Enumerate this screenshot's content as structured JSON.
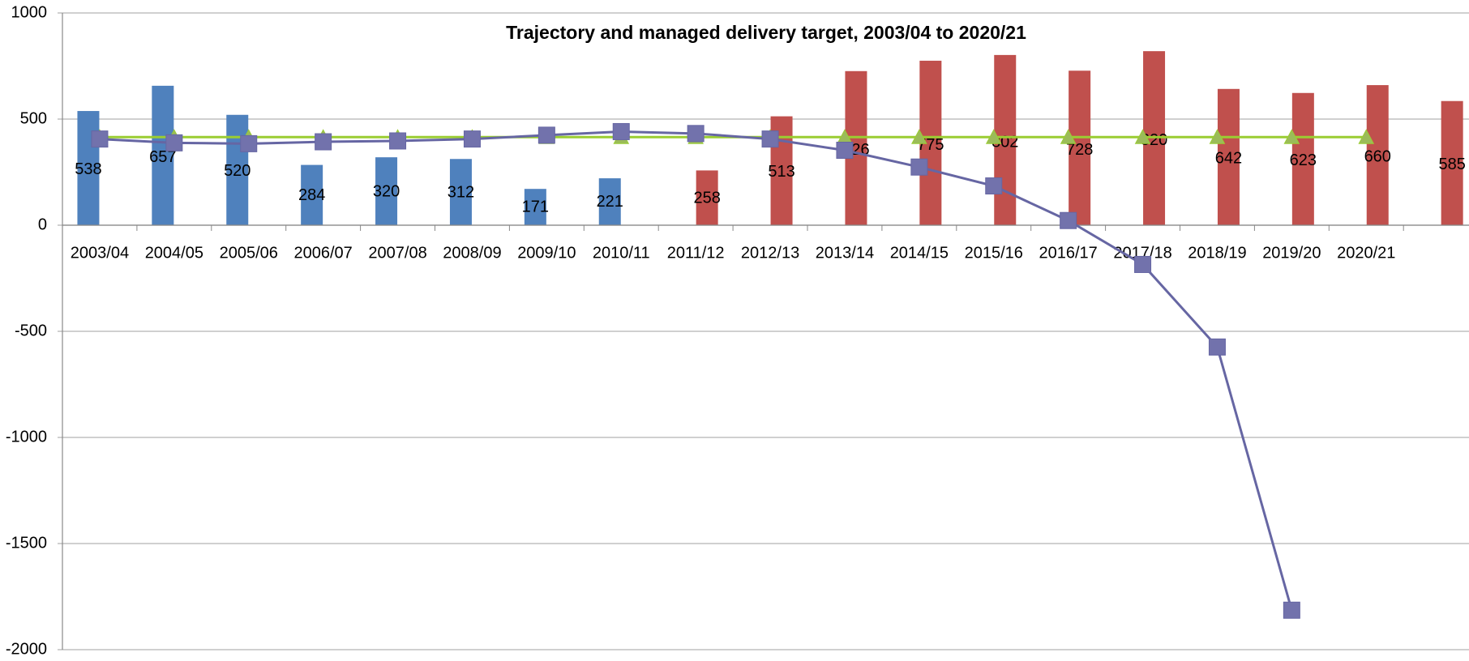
{
  "chart_data": {
    "type": "bar",
    "title": "Trajectory and managed delivery target, 2003/04 to 2020/21",
    "categories": [
      "2003/04",
      "2004/05",
      "2005/06",
      "2006/07",
      "2007/08",
      "2008/09",
      "2009/10",
      "2010/11",
      "2011/12",
      "2012/13",
      "2013/14",
      "2014/15",
      "2015/16",
      "2016/17",
      "2017/18",
      "2018/19",
      "2019/20",
      "2020/21",
      null
    ],
    "series": [
      {
        "type": "bar",
        "color": "#4f81bd",
        "values": [
          538,
          657,
          520,
          284,
          320,
          312,
          171,
          221,
          null,
          null,
          null,
          null,
          null,
          null,
          null,
          null,
          null,
          null,
          null
        ]
      },
      {
        "type": "bar",
        "color": "#c0504d",
        "values": [
          null,
          null,
          null,
          null,
          null,
          null,
          null,
          null,
          258,
          513,
          726,
          775,
          802,
          728,
          820,
          642,
          623,
          660,
          585
        ]
      },
      {
        "type": "line",
        "color": "#9acd32",
        "marker": "triangle",
        "values": [
          415,
          415,
          415,
          415,
          415,
          415,
          415,
          415,
          415,
          415,
          415,
          415,
          415,
          415,
          415,
          415,
          415,
          415,
          null
        ]
      },
      {
        "type": "line",
        "color": "#6666a3",
        "marker": "square",
        "values": [
          406,
          388,
          384,
          393,
          397,
          406,
          424,
          441,
          432,
          406,
          353,
          274,
          185,
          22,
          -185,
          -574,
          -1814,
          null,
          null
        ]
      }
    ],
    "ylim": [
      -2000,
      1000
    ],
    "yticks": [
      -2000,
      -1500,
      -1000,
      -500,
      0,
      500,
      1000
    ],
    "grid": true
  }
}
